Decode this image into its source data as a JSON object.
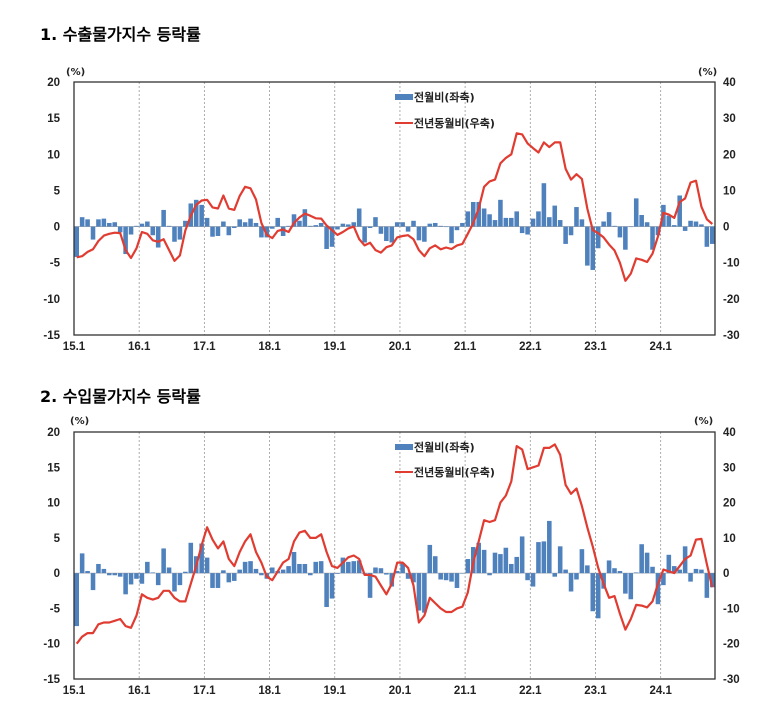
{
  "chart_data": [
    {
      "type": "bar+line",
      "title": "1. 수출물가지수 등락률",
      "left_unit": "(%)",
      "right_unit": "(%)",
      "left_ylim": [
        -15,
        20
      ],
      "right_ylim": [
        -30,
        40
      ],
      "left_ticks": [
        "20",
        "15",
        "10",
        "5",
        "0",
        "-5",
        "-10",
        "-15"
      ],
      "right_ticks": [
        "40",
        "30",
        "20",
        "10",
        "0",
        "-10",
        "-20",
        "-30"
      ],
      "x_ticks": [
        "15.1",
        "16.1",
        "17.1",
        "18.1",
        "19.1",
        "20.1",
        "21.1",
        "22.1",
        "23.1",
        "24.1"
      ],
      "x_range": "2015.01-2024.10 (monthly)",
      "grid": "vertical dotted at each January",
      "legend_placement": "top-center",
      "series": [
        {
          "name": "전월비(좌축)",
          "type": "bar",
          "axis": "left",
          "color": "#4f81bd",
          "values": [
            -4.2,
            1.3,
            1.0,
            -1.8,
            1.0,
            1.1,
            0.5,
            0.6,
            -0.8,
            -3.8,
            -1.1,
            0.1,
            0.4,
            0.7,
            -1.2,
            -2.9,
            2.3,
            0.1,
            -2.1,
            -1.8,
            0.8,
            3.2,
            3.7,
            3.0,
            1.2,
            -1.4,
            -1.3,
            0.7,
            -1.2,
            -0.2,
            1.0,
            0.6,
            1.1,
            0.5,
            -1.5,
            -1.5,
            -0.3,
            1.2,
            -1.3,
            0.1,
            1.7,
            0.8,
            2.4,
            0.1,
            0.2,
            0.5,
            -3.1,
            -2.8,
            -0.4,
            0.4,
            0.3,
            0.6,
            2.5,
            -2.2,
            -0.2,
            1.3,
            -1.0,
            -2.0,
            -2.2,
            0.6,
            0.6,
            -0.7,
            0.8,
            -1.9,
            -2.1,
            0.4,
            0.5,
            0.1,
            0.0,
            -2.3,
            -0.5,
            0.5,
            2.1,
            3.4,
            3.4,
            2.5,
            1.7,
            0.9,
            3.7,
            1.2,
            1.2,
            2.1,
            -0.9,
            -1.1,
            1.1,
            2.1,
            6.0,
            1.3,
            2.9,
            0.9,
            -2.4,
            -1.2,
            2.7,
            1.0,
            -5.4,
            -6.0,
            -3.0,
            0.7,
            2.0,
            0.1,
            -1.5,
            -3.2,
            0.0,
            3.9,
            1.6,
            0.6,
            -3.2,
            -1.2,
            3.0,
            1.5,
            0.2,
            4.3,
            -0.6,
            0.8,
            0.7,
            0.3,
            -2.8,
            -2.4
          ]
        },
        {
          "name": "전년동월비(우축)",
          "type": "line",
          "axis": "right",
          "color": "#e03c31",
          "values": [
            -8.5,
            -8.2,
            -7.0,
            -6.3,
            -4.0,
            -2.5,
            -2.0,
            -1.7,
            -1.8,
            -6.5,
            -8.7,
            -6.0,
            -1.5,
            -2.0,
            -3.8,
            -4.2,
            -3.5,
            -6.5,
            -9.5,
            -8.0,
            -1.0,
            3.0,
            6.0,
            7.2,
            7.4,
            5.3,
            5.0,
            8.6,
            5.0,
            4.6,
            8.5,
            11.0,
            10.6,
            7.5,
            1.0,
            -2.3,
            -3.2,
            -1.2,
            -0.8,
            -1.5,
            1.0,
            2.5,
            3.6,
            3.0,
            2.3,
            2.2,
            0.3,
            -1.0,
            -2.3,
            -1.5,
            -0.5,
            0.0,
            -3.5,
            -5.2,
            -4.5,
            -6.5,
            -7.2,
            -5.7,
            -5.2,
            -3.0,
            -2.6,
            -2.4,
            -3.5,
            -6.5,
            -8.2,
            -6.0,
            -5.2,
            -6.3,
            -5.8,
            -6.2,
            -5.2,
            -4.8,
            -2.0,
            1.0,
            5.0,
            11.0,
            12.5,
            13.0,
            17.5,
            19.0,
            20.0,
            25.8,
            25.5,
            23.0,
            21.7,
            20.5,
            23.3,
            22.0,
            23.3,
            23.3,
            16.0,
            13.0,
            14.5,
            13.2,
            5.0,
            -1.0,
            -1.8,
            -3.0,
            -5.0,
            -6.6,
            -10.0,
            -15.0,
            -13.0,
            -8.8,
            -9.2,
            -9.8,
            -7.5,
            -2.7,
            3.8,
            3.3,
            2.4,
            6.8,
            7.8,
            12.2,
            12.7,
            5.5,
            2.0,
            0.7
          ]
        }
      ]
    },
    {
      "type": "bar+line",
      "title": "2. 수입물가지수 등락률",
      "left_unit": "(%)",
      "right_unit": "(%)",
      "left_ylim": [
        -15,
        20
      ],
      "right_ylim": [
        -30,
        40
      ],
      "left_ticks": [
        "20",
        "15",
        "10",
        "5",
        "0",
        "-5",
        "-10",
        "-15"
      ],
      "right_ticks": [
        "40",
        "30",
        "20",
        "10",
        "0",
        "-10",
        "-20",
        "-30"
      ],
      "x_ticks": [
        "15.1",
        "16.1",
        "17.1",
        "18.1",
        "19.1",
        "20.1",
        "21.1",
        "22.1",
        "23.1",
        "24.1"
      ],
      "x_range": "2015.01-2024.10 (monthly)",
      "grid": "vertical dotted at each January",
      "legend_placement": "top-center",
      "series": [
        {
          "name": "전월비(좌축)",
          "type": "bar",
          "axis": "left",
          "color": "#4f81bd",
          "values": [
            -7.5,
            2.8,
            0.3,
            -2.4,
            1.3,
            0.6,
            -0.3,
            -0.3,
            -0.5,
            -3.0,
            -1.6,
            -0.8,
            -1.5,
            1.6,
            0.1,
            -1.7,
            3.5,
            0.8,
            -2.6,
            -1.7,
            0.2,
            4.3,
            2.4,
            4.2,
            2.2,
            -2.1,
            -2.1,
            0.4,
            -1.3,
            -1.1,
            0.5,
            1.6,
            1.7,
            0.6,
            -0.3,
            -0.8,
            0.8,
            0.3,
            0.5,
            1.0,
            3.0,
            1.3,
            1.3,
            -0.3,
            1.6,
            1.7,
            -4.8,
            -3.6,
            -0.1,
            2.2,
            1.6,
            1.7,
            1.8,
            -0.1,
            -3.5,
            0.8,
            0.7,
            -0.2,
            -1.9,
            0.3,
            1.4,
            -0.8,
            -1.3,
            -5.3,
            -5.6,
            4.0,
            2.4,
            -0.9,
            -1.0,
            -1.2,
            -2.1,
            0.0,
            2.0,
            3.7,
            4.3,
            3.3,
            -0.3,
            2.9,
            2.7,
            3.6,
            1.3,
            2.3,
            5.2,
            -1.0,
            -1.9,
            4.4,
            4.5,
            7.4,
            -0.5,
            3.8,
            0.5,
            -2.6,
            -0.9,
            3.4,
            1.1,
            -5.4,
            -6.4,
            -2.2,
            1.8,
            0.7,
            0.3,
            -2.9,
            -3.7,
            0.1,
            4.1,
            2.9,
            0.9,
            -4.4,
            -1.7,
            2.6,
            1.0,
            0.5,
            3.8,
            -1.2,
            0.6,
            0.5,
            -3.5,
            -2.0
          ]
        },
        {
          "name": "전년동월비(우축)",
          "type": "line",
          "axis": "right",
          "color": "#e03c31",
          "values": [
            -20.0,
            -18.0,
            -17.0,
            -17.0,
            -14.5,
            -14.0,
            -14.0,
            -13.5,
            -13.0,
            -15.0,
            -15.5,
            -12.0,
            -6.0,
            -7.0,
            -7.5,
            -7.0,
            -5.0,
            -5.0,
            -7.0,
            -8.0,
            -8.0,
            -3.0,
            2.0,
            8.0,
            13.0,
            9.5,
            7.0,
            9.0,
            4.0,
            2.0,
            6.0,
            9.0,
            11.0,
            6.0,
            3.0,
            -1.0,
            -2.0,
            0.5,
            3.0,
            4.0,
            9.0,
            11.5,
            12.0,
            10.0,
            10.0,
            11.0,
            6.0,
            2.0,
            1.5,
            3.0,
            4.5,
            5.0,
            4.0,
            -0.5,
            -0.5,
            -1.0,
            -3.5,
            -6.0,
            -3.0,
            3.0,
            3.0,
            1.5,
            -3.5,
            -14.0,
            -12.0,
            -7.0,
            -8.5,
            -10.0,
            -11.0,
            -11.0,
            -10.0,
            -9.5,
            -5.5,
            3.0,
            9.0,
            15.0,
            14.5,
            15.0,
            20.0,
            22.0,
            26.0,
            36.0,
            35.0,
            29.5,
            30.0,
            30.5,
            35.5,
            35.5,
            36.5,
            33.5,
            25.0,
            22.5,
            24.0,
            19.0,
            13.0,
            7.5,
            1.5,
            -3.0,
            -7.0,
            -6.5,
            -11.5,
            -16.0,
            -13.0,
            -9.0,
            -9.2,
            -9.7,
            -8.0,
            -3.0,
            1.0,
            0.5,
            0.0,
            2.0,
            4.0,
            5.0,
            9.5,
            9.7,
            2.5,
            -4.0
          ]
        }
      ]
    }
  ]
}
